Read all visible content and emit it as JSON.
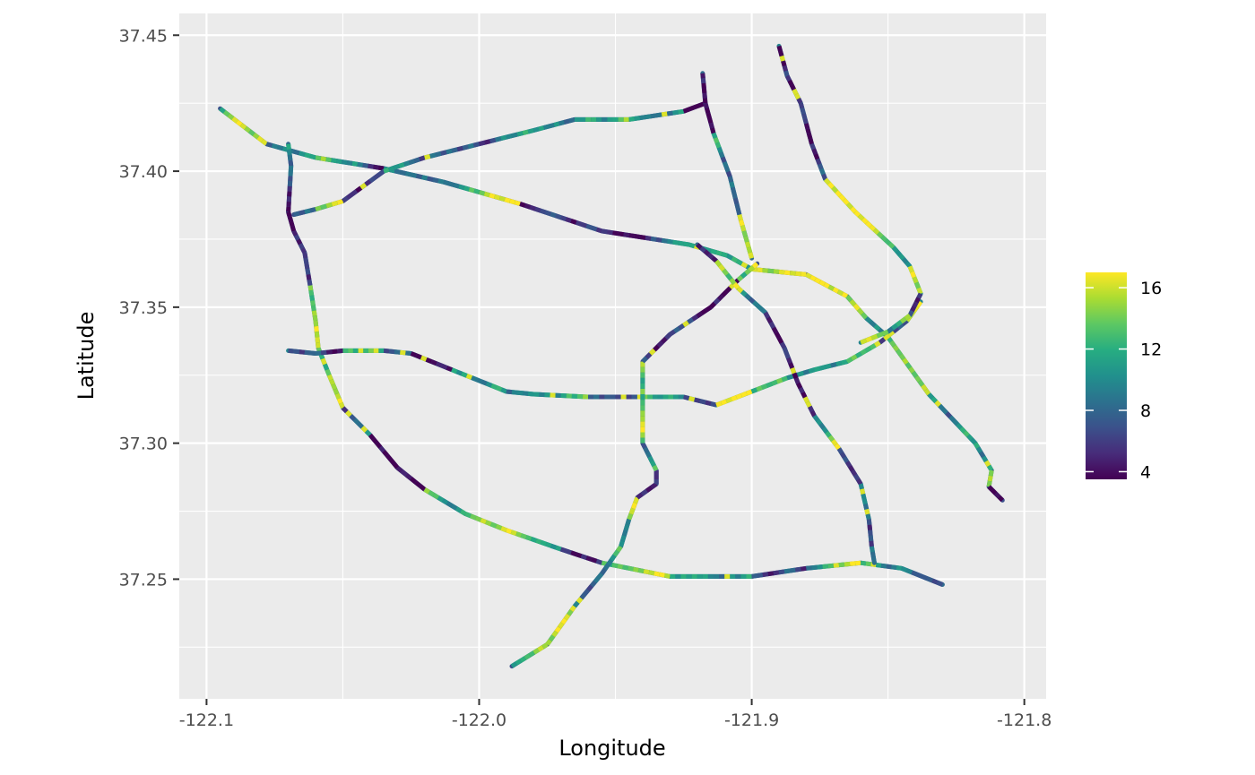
{
  "chart_data": {
    "type": "line",
    "xlabel": "Longitude",
    "ylabel": "Latitude",
    "xlim": [
      -122.11,
      -121.792
    ],
    "ylim": [
      37.206,
      37.458
    ],
    "x_ticks": [
      -122.1,
      -122.0,
      -121.9,
      -121.8
    ],
    "x_tick_labels": [
      "-122.1",
      "-122.0",
      "-121.9",
      "-121.8"
    ],
    "y_ticks": [
      37.25,
      37.3,
      37.35,
      37.4,
      37.45
    ],
    "y_tick_labels": [
      "37.25",
      "37.30",
      "37.35",
      "37.40",
      "37.45"
    ],
    "grid": true,
    "legend": {
      "placement": "right",
      "type": "colorbar",
      "palette": "viridis",
      "range": [
        3.5,
        17
      ],
      "ticks": [
        4,
        8,
        12,
        16
      ],
      "tick_labels": [
        "4",
        "8",
        "12",
        "16"
      ],
      "colors": [
        "#440154",
        "#472c7a",
        "#3b518b",
        "#2c718e",
        "#21908d",
        "#27ad81",
        "#5cc863",
        "#aadc32",
        "#fde725"
      ]
    },
    "series": [
      {
        "points": [
          [
            -122.095,
            37.423
          ],
          [
            -122.078,
            37.41
          ],
          [
            -122.06,
            37.405
          ],
          [
            -122.035,
            37.401
          ],
          [
            -122.013,
            37.396
          ],
          [
            -121.985,
            37.388
          ],
          [
            -121.955,
            37.378
          ],
          [
            -121.923,
            37.373
          ],
          [
            -121.909,
            37.369
          ],
          [
            -121.9,
            37.364
          ],
          [
            -121.88,
            37.362
          ],
          [
            -121.865,
            37.354
          ],
          [
            -121.858,
            37.346
          ],
          [
            -121.85,
            37.339
          ],
          [
            -121.835,
            37.318
          ],
          [
            -121.818,
            37.3
          ],
          [
            -121.812,
            37.29
          ],
          [
            -121.813,
            37.284
          ],
          [
            -121.808,
            37.279
          ]
        ]
      },
      {
        "points": [
          [
            -122.07,
            37.41
          ],
          [
            -122.069,
            37.402
          ],
          [
            -122.07,
            37.385
          ],
          [
            -122.068,
            37.378
          ],
          [
            -122.064,
            37.37
          ],
          [
            -122.062,
            37.358
          ],
          [
            -122.06,
            37.345
          ],
          [
            -122.059,
            37.335
          ],
          [
            -122.055,
            37.325
          ],
          [
            -122.05,
            37.313
          ],
          [
            -122.04,
            37.303
          ],
          [
            -122.03,
            37.291
          ],
          [
            -122.02,
            37.283
          ],
          [
            -122.005,
            37.274
          ],
          [
            -121.99,
            37.268
          ],
          [
            -121.97,
            37.261
          ],
          [
            -121.955,
            37.256
          ],
          [
            -121.93,
            37.251
          ],
          [
            -121.9,
            37.251
          ],
          [
            -121.88,
            37.254
          ],
          [
            -121.86,
            37.256
          ],
          [
            -121.845,
            37.254
          ],
          [
            -121.83,
            37.248
          ]
        ]
      },
      {
        "points": [
          [
            -122.07,
            37.334
          ],
          [
            -122.06,
            37.333
          ],
          [
            -122.05,
            37.334
          ],
          [
            -122.035,
            37.334
          ],
          [
            -122.025,
            37.333
          ],
          [
            -122.01,
            37.327
          ],
          [
            -121.99,
            37.319
          ],
          [
            -121.98,
            37.318
          ],
          [
            -121.96,
            37.317
          ],
          [
            -121.942,
            37.317
          ],
          [
            -121.925,
            37.317
          ],
          [
            -121.913,
            37.314
          ],
          [
            -121.9,
            37.319
          ],
          [
            -121.887,
            37.324
          ],
          [
            -121.877,
            37.327
          ],
          [
            -121.865,
            37.33
          ],
          [
            -121.853,
            37.337
          ],
          [
            -121.843,
            37.345
          ],
          [
            -121.838,
            37.352
          ]
        ]
      },
      {
        "points": [
          [
            -122.068,
            37.384
          ],
          [
            -122.06,
            37.386
          ],
          [
            -122.05,
            37.389
          ],
          [
            -122.035,
            37.4
          ],
          [
            -122.02,
            37.405
          ],
          [
            -122.0,
            37.41
          ],
          [
            -121.98,
            37.415
          ],
          [
            -121.965,
            37.419
          ],
          [
            -121.945,
            37.419
          ],
          [
            -121.925,
            37.422
          ],
          [
            -121.917,
            37.425
          ]
        ]
      },
      {
        "points": [
          [
            -121.918,
            37.436
          ],
          [
            -121.917,
            37.425
          ],
          [
            -121.914,
            37.414
          ],
          [
            -121.908,
            37.398
          ],
          [
            -121.904,
            37.382
          ],
          [
            -121.9,
            37.368
          ]
        ]
      },
      {
        "points": [
          [
            -121.89,
            37.446
          ],
          [
            -121.887,
            37.435
          ],
          [
            -121.882,
            37.425
          ],
          [
            -121.878,
            37.41
          ],
          [
            -121.873,
            37.397
          ],
          [
            -121.862,
            37.385
          ],
          [
            -121.848,
            37.372
          ],
          [
            -121.842,
            37.365
          ],
          [
            -121.838,
            37.355
          ],
          [
            -121.842,
            37.347
          ],
          [
            -121.85,
            37.341
          ],
          [
            -121.86,
            37.337
          ]
        ]
      },
      {
        "points": [
          [
            -121.988,
            37.218
          ],
          [
            -121.975,
            37.226
          ],
          [
            -121.965,
            37.24
          ],
          [
            -121.955,
            37.252
          ],
          [
            -121.948,
            37.262
          ],
          [
            -121.945,
            37.272
          ],
          [
            -121.942,
            37.28
          ],
          [
            -121.935,
            37.285
          ],
          [
            -121.935,
            37.29
          ],
          [
            -121.94,
            37.3
          ],
          [
            -121.94,
            37.318
          ],
          [
            -121.94,
            37.33
          ],
          [
            -121.93,
            37.34
          ],
          [
            -121.915,
            37.35
          ],
          [
            -121.905,
            37.36
          ],
          [
            -121.898,
            37.366
          ]
        ]
      },
      {
        "points": [
          [
            -121.92,
            37.373
          ],
          [
            -121.913,
            37.367
          ],
          [
            -121.905,
            37.357
          ],
          [
            -121.895,
            37.348
          ],
          [
            -121.888,
            37.335
          ],
          [
            -121.883,
            37.322
          ],
          [
            -121.877,
            37.31
          ],
          [
            -121.868,
            37.298
          ],
          [
            -121.86,
            37.285
          ],
          [
            -121.857,
            37.272
          ],
          [
            -121.856,
            37.262
          ],
          [
            -121.855,
            37.256
          ]
        ]
      }
    ]
  }
}
